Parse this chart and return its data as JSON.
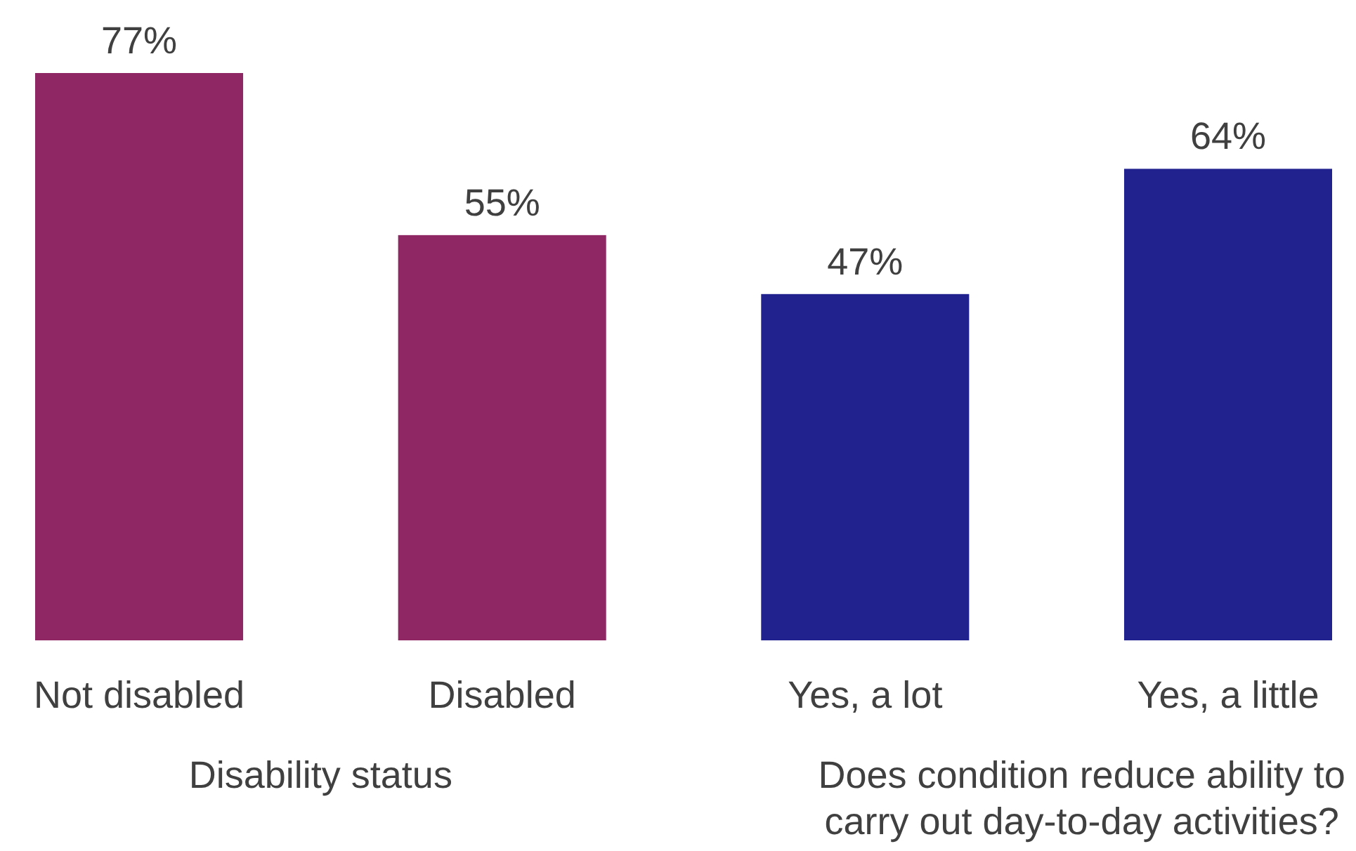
{
  "chart_data": {
    "type": "bar",
    "categories": [
      "Not disabled",
      "Disabled",
      "Yes, a lot",
      "Yes, a little"
    ],
    "values": [
      77,
      55,
      47,
      64
    ],
    "colors": [
      "#8e2763",
      "#8e2763",
      "#22228f",
      "#22228f"
    ],
    "value_labels": [
      "77%",
      "55%",
      "47%",
      "64%"
    ],
    "annotations": [
      "Disability status",
      "Does condition reduce ability to carry out day-to-day activities?"
    ]
  }
}
